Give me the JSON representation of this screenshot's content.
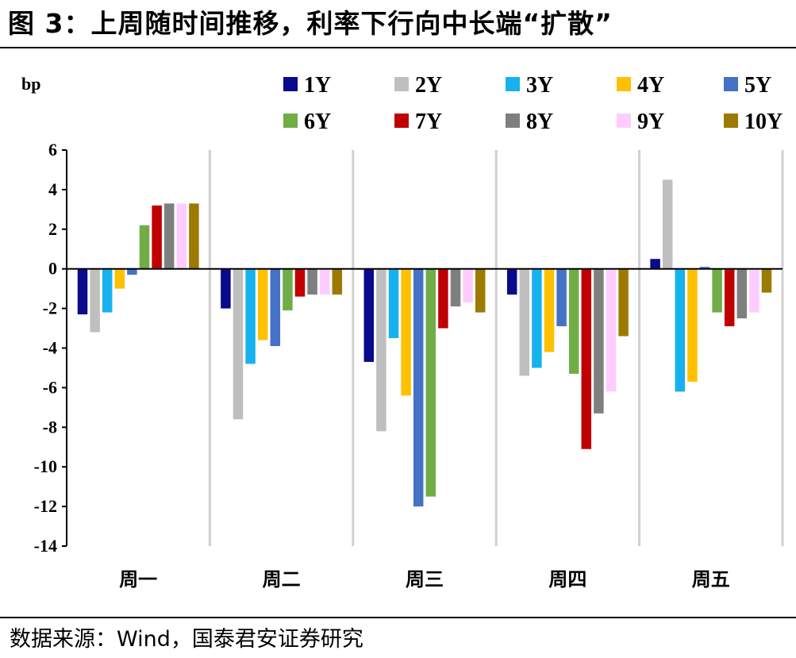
{
  "header": {
    "title": "图 3：上周随时间推移，利率下行向中长端“扩散”"
  },
  "footer": {
    "source": "数据来源：Wind，国泰君安证券研究"
  },
  "chart_data": {
    "type": "bar",
    "title": "图 3：上周随时间推移，利率下行向中长端“扩散”",
    "ylabel": "bp",
    "xlabel": "",
    "ylim": [
      -14,
      6
    ],
    "yticks": [
      -14,
      -12,
      -10,
      -8,
      -6,
      -4,
      -2,
      0,
      2,
      4,
      6
    ],
    "grid": "vertical separators between categories",
    "legend_position": "top",
    "categories": [
      "周一",
      "周二",
      "周三",
      "周四",
      "周五"
    ],
    "series": [
      {
        "name": "1Y",
        "color": "#0A0A8C",
        "values": [
          -2.3,
          -2.0,
          -4.7,
          -1.3,
          0.5
        ]
      },
      {
        "name": "2Y",
        "color": "#BFBFBF",
        "values": [
          -3.2,
          -7.6,
          -8.2,
          -5.4,
          4.5
        ]
      },
      {
        "name": "3Y",
        "color": "#17B2EE",
        "values": [
          -2.2,
          -4.8,
          -3.5,
          -5.0,
          -6.2
        ]
      },
      {
        "name": "4Y",
        "color": "#FFC000",
        "values": [
          -1.0,
          -3.6,
          -6.4,
          -4.2,
          -5.7
        ]
      },
      {
        "name": "5Y",
        "color": "#4472C4",
        "values": [
          -0.3,
          -3.9,
          -12.0,
          -2.9,
          0.1
        ]
      },
      {
        "name": "6Y",
        "color": "#70AD47",
        "values": [
          2.2,
          -2.1,
          -11.5,
          -5.3,
          -2.2
        ]
      },
      {
        "name": "7Y",
        "color": "#C00000",
        "values": [
          3.2,
          -1.4,
          -3.0,
          -9.1,
          -2.9
        ]
      },
      {
        "name": "8Y",
        "color": "#7F7F7F",
        "values": [
          3.3,
          -1.3,
          -1.9,
          -7.3,
          -2.5
        ]
      },
      {
        "name": "9Y",
        "color": "#FFCCFF",
        "values": [
          3.3,
          -1.3,
          -1.7,
          -6.2,
          -2.2
        ]
      },
      {
        "name": "10Y",
        "color": "#9C7A00",
        "values": [
          3.3,
          -1.3,
          -2.2,
          -3.4,
          -1.2
        ]
      }
    ]
  }
}
